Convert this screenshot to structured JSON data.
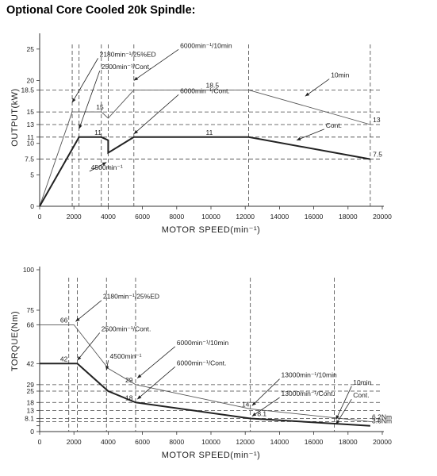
{
  "page_title": "Optional Core Cooled 20k Spindle:",
  "chart_data": [
    {
      "type": "line",
      "xlabel": "MOTOR SPEED(min⁻¹)",
      "ylabel": "OUTPUT(kW)",
      "xlim": [
        0,
        20000
      ],
      "ylim": [
        0,
        27
      ],
      "x_ticks": [
        0,
        2000,
        4000,
        6000,
        8000,
        10000,
        12000,
        14000,
        16000,
        18000,
        20000
      ],
      "y_ticks": [
        0,
        5,
        7.5,
        10,
        11,
        13,
        15,
        18.5,
        20,
        25
      ],
      "y_tick_labels": [
        "0",
        "5",
        "7.5",
        "10",
        "11",
        "13",
        "15",
        "18.5",
        "20",
        "25"
      ],
      "series": [
        {
          "name": "10min",
          "style": "thin",
          "points": [
            [
              0,
              0
            ],
            [
              1900,
              15
            ],
            [
              3600,
              15
            ],
            [
              4000,
              14
            ],
            [
              5500,
              18.5
            ],
            [
              12200,
              18.5
            ],
            [
              19300,
              13
            ]
          ]
        },
        {
          "name": "Cont.",
          "style": "thick",
          "points": [
            [
              0,
              0
            ],
            [
              2300,
              11
            ],
            [
              3600,
              11
            ],
            [
              4000,
              10.5
            ],
            [
              4000,
              8.5
            ],
            [
              5500,
              11
            ],
            [
              12200,
              11
            ],
            [
              19300,
              7.5
            ]
          ]
        }
      ],
      "dashed_guides": {
        "vertical": [
          1900,
          2300,
          3600,
          4000,
          5500,
          12200,
          19300
        ],
        "horizontal": [
          7.5,
          11,
          13,
          15,
          18.5
        ]
      },
      "data_labels": [
        {
          "text": "15",
          "x": 3300,
          "y": 15
        },
        {
          "text": "11",
          "x": 3200,
          "y": 11
        },
        {
          "text": "18.5",
          "x": 9700,
          "y": 18.5
        },
        {
          "text": "11",
          "x": 9700,
          "y": 11
        },
        {
          "text": "13",
          "x": 19450,
          "y": 13
        },
        {
          "text": "7.5",
          "x": 19450,
          "y": 7.5
        }
      ],
      "annotations": [
        {
          "text": "2180min⁻¹/25%ED",
          "x": 3500,
          "y": 23.8,
          "anchor_x": 1900,
          "anchor_y": 16.5
        },
        {
          "text": "2500min⁻¹/Cont.",
          "x": 3600,
          "y": 21.8,
          "anchor_x": 2300,
          "anchor_y": 12.3
        },
        {
          "text": "6000min⁻¹/10min",
          "x": 8200,
          "y": 25.2,
          "anchor_x": 5500,
          "anchor_y": 20
        },
        {
          "text": "6000min⁻¹/Cont.",
          "x": 8200,
          "y": 18,
          "anchor_x": 5500,
          "anchor_y": 11.5
        },
        {
          "text": "4500min⁻¹",
          "x": 3000,
          "y": 5.8,
          "anchor_x": 3900,
          "anchor_y": 7
        },
        {
          "text": "10min",
          "x": 17000,
          "y": 20.5,
          "anchor_x": 15500,
          "anchor_y": 17.5
        },
        {
          "text": "Cont.",
          "x": 16700,
          "y": 12.5,
          "anchor_x": 15000,
          "anchor_y": 10.5
        }
      ]
    },
    {
      "type": "line",
      "xlabel": "MOTOR SPEED(min⁻¹)",
      "ylabel": "TORQUE(Nm)",
      "xlim": [
        0,
        20000
      ],
      "ylim": [
        0,
        100
      ],
      "x_ticks": [
        0,
        2000,
        4000,
        6000,
        8000,
        10000,
        12000,
        14000,
        16000,
        18000,
        20000
      ],
      "y_ticks": [
        0,
        3.6,
        6.2,
        8.1,
        13,
        18,
        25,
        29,
        42,
        66,
        75,
        100
      ],
      "y_tick_labels": [
        "0",
        "",
        "",
        "8.1",
        "13",
        "18",
        "25",
        "29",
        "42",
        "66",
        "75",
        "100"
      ],
      "series": [
        {
          "name": "10min",
          "style": "thin",
          "points": [
            [
              0,
              66
            ],
            [
              2000,
              66
            ],
            [
              4000,
              39
            ],
            [
              5600,
              29
            ],
            [
              12300,
              14
            ],
            [
              19300,
              6.2
            ]
          ]
        },
        {
          "name": "Cont.",
          "style": "thick",
          "points": [
            [
              0,
              42
            ],
            [
              2200,
              42
            ],
            [
              4000,
              25
            ],
            [
              5600,
              18
            ],
            [
              12300,
              8.1
            ],
            [
              19300,
              3.6
            ]
          ]
        }
      ],
      "dashed_guides": {
        "vertical": [
          1700,
          2200,
          3900,
          5600,
          12300,
          17200
        ],
        "horizontal": [
          6.2,
          8.1,
          13,
          18,
          25,
          29
        ]
      },
      "data_labels": [
        {
          "text": "66",
          "x": 1200,
          "y": 66
        },
        {
          "text": "42",
          "x": 1200,
          "y": 42
        },
        {
          "text": "29",
          "x": 5000,
          "y": 29
        },
        {
          "text": "18",
          "x": 5000,
          "y": 18
        },
        {
          "text": "14",
          "x": 11800,
          "y": 14
        },
        {
          "text": "8.1",
          "x": 12700,
          "y": 8.1
        },
        {
          "text": "6.2Nm",
          "x": 19400,
          "y": 6.2
        },
        {
          "text": "3.6Nm",
          "x": 19400,
          "y": 3.6
        }
      ],
      "annotations": [
        {
          "text": "2180min⁻¹/25%ED",
          "x": 3700,
          "y": 82,
          "anchor_x": 2100,
          "anchor_y": 68
        },
        {
          "text": "2500min⁻¹/Cont.",
          "x": 3600,
          "y": 62,
          "anchor_x": 2200,
          "anchor_y": 44
        },
        {
          "text": "4500min⁻¹",
          "x": 4100,
          "y": 45,
          "anchor_x": 3900,
          "anchor_y": 38
        },
        {
          "text": "6000min⁻¹/10min",
          "x": 8000,
          "y": 53.5,
          "anchor_x": 5700,
          "anchor_y": 33
        },
        {
          "text": "6000min⁻¹/Cont.",
          "x": 8000,
          "y": 41,
          "anchor_x": 5700,
          "anchor_y": 20
        },
        {
          "text": "13000min⁻¹/10min",
          "x": 14100,
          "y": 33.5,
          "anchor_x": 12400,
          "anchor_y": 16
        },
        {
          "text": "13000min⁻¹/Cont.",
          "x": 14100,
          "y": 22,
          "anchor_x": 12400,
          "anchor_y": 9.5
        },
        {
          "text": "10min",
          "x": 18300,
          "y": 29,
          "anchor_x": 17300,
          "anchor_y": 7.5
        },
        {
          "text": "Cont.",
          "x": 18300,
          "y": 21,
          "anchor_x": 17300,
          "anchor_y": 4.5
        }
      ]
    }
  ]
}
